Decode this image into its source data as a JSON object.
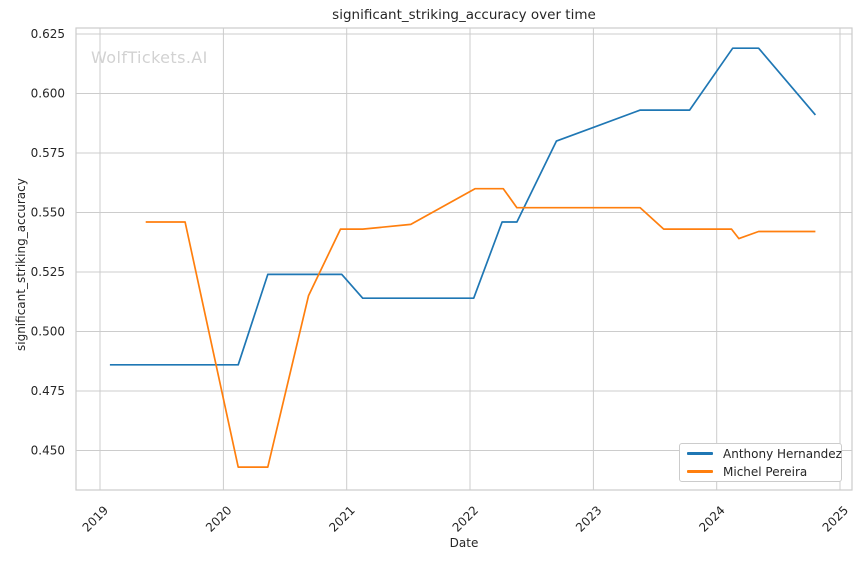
{
  "figure": {
    "watermark": "WolfTickets.AI"
  },
  "chart_data": {
    "type": "line",
    "title": "significant_striking_accuracy over time",
    "xlabel": "Date",
    "ylabel": "significant_striking_accuracy",
    "grid": true,
    "legend_position": "lower right",
    "xlim": [
      2018.805,
      2025.097
    ],
    "ylim": [
      0.4334,
      0.6275
    ],
    "x_ticks": [
      2019,
      2020,
      2021,
      2022,
      2023,
      2024,
      2025
    ],
    "x_tick_labels": [
      "2019",
      "2020",
      "2021",
      "2022",
      "2023",
      "2024",
      "2025"
    ],
    "y_ticks": [
      0.45,
      0.475,
      0.5,
      0.525,
      0.55,
      0.575,
      0.6,
      0.625
    ],
    "y_tick_labels": [
      "0.450",
      "0.475",
      "0.500",
      "0.525",
      "0.550",
      "0.575",
      "0.600",
      "0.625"
    ],
    "series": [
      {
        "name": "Anthony Hernandez",
        "color": "#1f77b4",
        "points": [
          [
            2019.08,
            0.486
          ],
          [
            2020.12,
            0.486
          ],
          [
            2020.36,
            0.524
          ],
          [
            2020.96,
            0.524
          ],
          [
            2021.13,
            0.514
          ],
          [
            2022.03,
            0.514
          ],
          [
            2022.26,
            0.546
          ],
          [
            2022.38,
            0.546
          ],
          [
            2022.7,
            0.58
          ],
          [
            2023.38,
            0.593
          ],
          [
            2023.78,
            0.593
          ],
          [
            2024.13,
            0.619
          ],
          [
            2024.34,
            0.619
          ],
          [
            2024.8,
            0.591
          ]
        ]
      },
      {
        "name": "Michel Pereira",
        "color": "#ff7f0e",
        "points": [
          [
            2019.37,
            0.546
          ],
          [
            2019.69,
            0.546
          ],
          [
            2020.12,
            0.443
          ],
          [
            2020.36,
            0.443
          ],
          [
            2020.69,
            0.515
          ],
          [
            2020.95,
            0.543
          ],
          [
            2021.13,
            0.543
          ],
          [
            2021.52,
            0.545
          ],
          [
            2022.04,
            0.56
          ],
          [
            2022.27,
            0.56
          ],
          [
            2022.38,
            0.552
          ],
          [
            2023.38,
            0.552
          ],
          [
            2023.57,
            0.543
          ],
          [
            2024.12,
            0.543
          ],
          [
            2024.18,
            0.539
          ],
          [
            2024.34,
            0.542
          ],
          [
            2024.8,
            0.542
          ]
        ]
      }
    ]
  },
  "style": {
    "background": "#ffffff",
    "grid_color": "#cccccc",
    "spine_color": "#cccccc",
    "text_color": "#262626",
    "watermark_color": "#d2d2d2",
    "legend_border": "#cccccc"
  }
}
